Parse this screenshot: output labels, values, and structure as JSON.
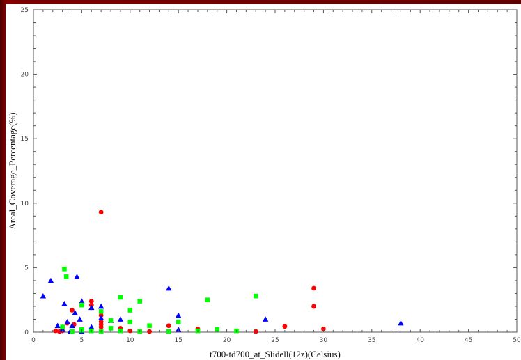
{
  "chart_data": {
    "type": "scatter",
    "title": "",
    "xlabel": "t700-td700_at_Slidell(12z)(Celsius)",
    "ylabel": "Areal_Coverage_Percentage(%)",
    "xlim": [
      0,
      50
    ],
    "ylim": [
      0,
      25
    ],
    "x_ticks": [
      0,
      5,
      10,
      15,
      20,
      25,
      30,
      35,
      40,
      45,
      50
    ],
    "y_ticks": [
      0,
      5,
      10,
      15,
      20,
      25
    ],
    "grid": false,
    "legend": "none",
    "series": [
      {
        "marker": "circle",
        "color": "#ff0000",
        "x": [
          7,
          2.3,
          2.7,
          3.5,
          4,
          4.2,
          6,
          6,
          7,
          7,
          7,
          7,
          9,
          10,
          12,
          14,
          17,
          23,
          26,
          29,
          29,
          30,
          3,
          5
        ],
        "y": [
          9.3,
          0.1,
          0.05,
          0.7,
          1.7,
          0.6,
          2.4,
          2.1,
          1.3,
          0.8,
          0.6,
          0.4,
          0.3,
          0.1,
          0.05,
          0.5,
          0.25,
          0.05,
          0.45,
          3.4,
          2.0,
          0.25,
          0.1,
          0.05
        ]
      },
      {
        "marker": "triangle",
        "color": "#0000ff",
        "x": [
          1,
          1.8,
          2.5,
          3.2,
          3.5,
          4,
          4.3,
          4.5,
          4.8,
          5,
          6,
          6,
          7,
          7,
          8,
          9,
          14,
          15,
          15,
          24,
          38,
          3,
          3.8,
          5
        ],
        "y": [
          2.8,
          4.0,
          0.5,
          2.2,
          0.8,
          0.5,
          1.5,
          4.3,
          1.0,
          2.4,
          1.9,
          0.4,
          2.0,
          1.1,
          0.9,
          1.0,
          3.4,
          1.3,
          0.2,
          1.0,
          0.7,
          0.2,
          0.05,
          0.05
        ]
      },
      {
        "marker": "square",
        "color": "#00ff00",
        "x": [
          3.2,
          3.4,
          5,
          5,
          6,
          7,
          7,
          8,
          8,
          9,
          9,
          10,
          10,
          11,
          11,
          12,
          14,
          15,
          17,
          18,
          19,
          21,
          23,
          3,
          4,
          5
        ],
        "y": [
          4.9,
          4.3,
          2.1,
          0.2,
          0.1,
          1.6,
          0.05,
          0.9,
          0.3,
          2.7,
          0.1,
          1.7,
          0.8,
          2.4,
          0.05,
          0.5,
          0.05,
          0.8,
          0.1,
          2.5,
          0.2,
          0.1,
          2.8,
          0.4,
          0.05,
          0.15
        ]
      }
    ]
  }
}
